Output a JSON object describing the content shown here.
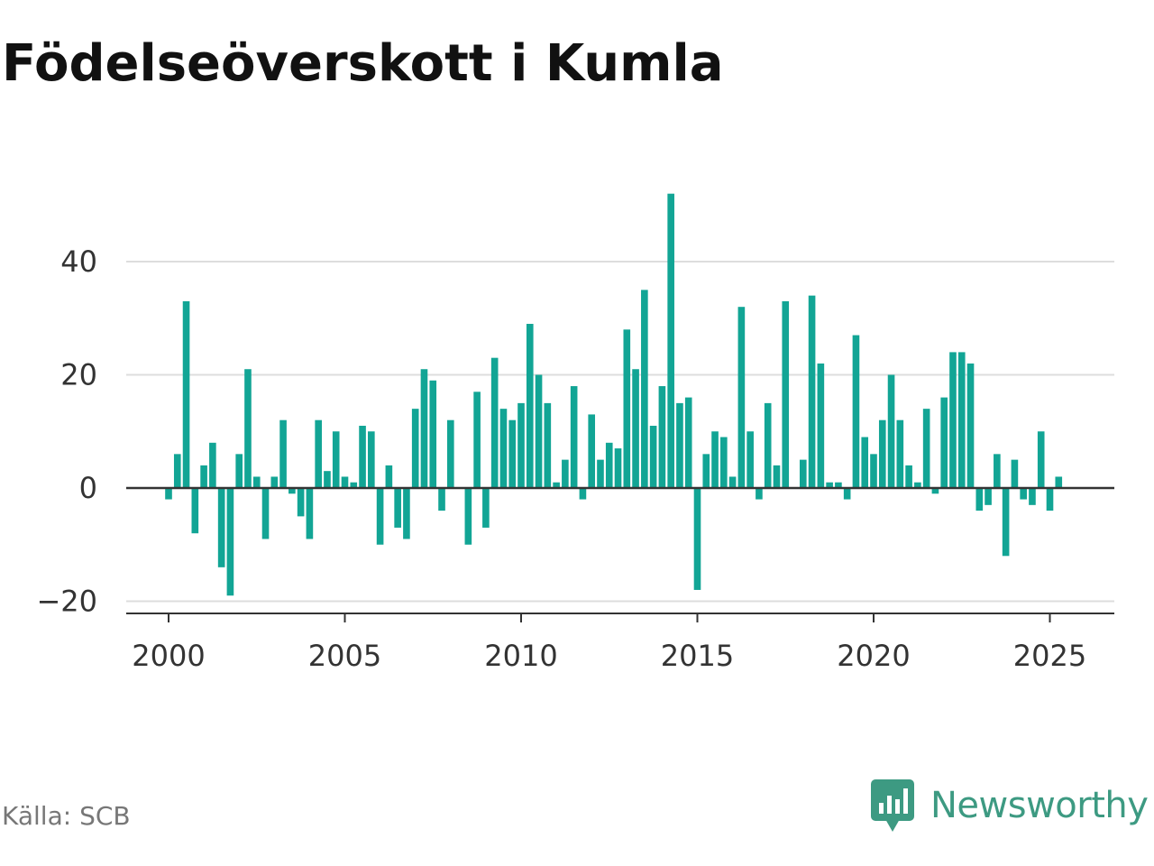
{
  "title": "Födelseöverskott i Kumla",
  "source": "Källa: SCB",
  "brand": {
    "name": "Newsworthy",
    "icon": "newsworthy-logo-icon",
    "color": "#3d9a82"
  },
  "chart_data": {
    "type": "bar",
    "title": "Födelseöverskott i Kumla",
    "xlabel": "",
    "ylabel": "",
    "bar_color": "#12a595",
    "grid": true,
    "x_axis": {
      "min": 2000,
      "max": 2026.3,
      "ticks": [
        2000,
        2005,
        2010,
        2015,
        2020,
        2025
      ],
      "tick_labels": [
        "2000",
        "2005",
        "2010",
        "2015",
        "2020",
        "2025"
      ]
    },
    "y_axis": {
      "min": -20,
      "max": 52,
      "ticks": [
        -20,
        0,
        20,
        40
      ],
      "tick_labels": [
        "−20",
        "0",
        "20",
        "40"
      ]
    },
    "x_start": "2000 Q1",
    "period": "quarter",
    "values": [
      -2,
      6,
      33,
      -8,
      4,
      8,
      -14,
      -19,
      6,
      21,
      2,
      -9,
      2,
      12,
      -1,
      -5,
      -9,
      12,
      3,
      10,
      2,
      1,
      11,
      10,
      -10,
      4,
      -7,
      -9,
      14,
      21,
      19,
      -4,
      12,
      0,
      -10,
      17,
      -7,
      23,
      14,
      12,
      15,
      29,
      20,
      15,
      1,
      5,
      18,
      -2,
      13,
      5,
      8,
      7,
      28,
      21,
      35,
      11,
      18,
      52,
      15,
      16,
      -18,
      6,
      10,
      9,
      2,
      32,
      10,
      -2,
      15,
      4,
      33,
      0,
      5,
      34,
      22,
      1,
      1,
      -2,
      27,
      9,
      6,
      12,
      20,
      12,
      4,
      1,
      14,
      -1,
      16,
      24,
      24,
      22,
      -4,
      -3,
      6,
      -12,
      5,
      -2,
      -3,
      10,
      -4,
      2
    ]
  }
}
